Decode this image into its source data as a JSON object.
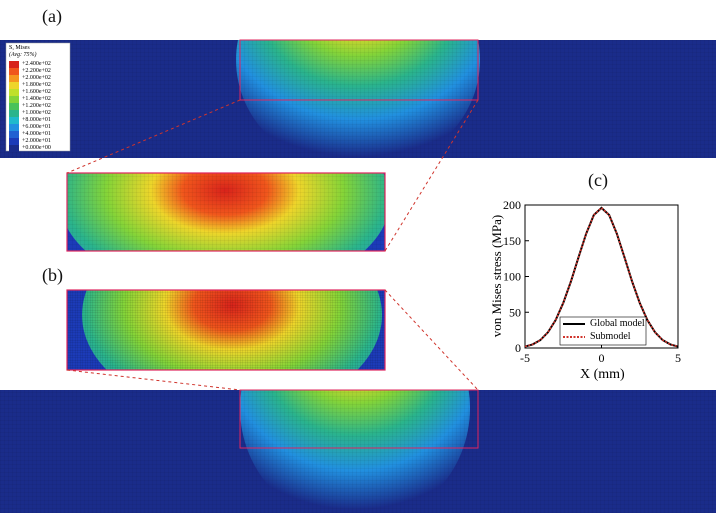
{
  "labels": {
    "a": "(a)",
    "b": "(b)",
    "c": "(c)"
  },
  "legend": {
    "title": "S, Mises",
    "subtitle": "(Avg: 75%)",
    "entries": [
      "+2.400e+02",
      "+2.200e+02",
      "+2.000e+02",
      "+1.800e+02",
      "+1.600e+02",
      "+1.400e+02",
      "+1.200e+02",
      "+1.000e+02",
      "+8.000e+01",
      "+6.000e+01",
      "+4.000e+01",
      "+2.000e+01",
      "+0.000e+00"
    ],
    "colors": [
      "#d8231b",
      "#f0561c",
      "#f5961f",
      "#eed52a",
      "#bfe02a",
      "#84d438",
      "#49c25a",
      "#2ab48c",
      "#1fb9cc",
      "#2190e0",
      "#2160d2",
      "#1c3bb8",
      "#1a2c8a"
    ]
  },
  "colors": {
    "background_mesh": "#1a2c8a",
    "highlight_box": "#e0245e",
    "dashed_connector": "#d0342c",
    "global_line": "#000000",
    "sub_line": "#d0342c"
  },
  "chart_data": {
    "type": "line",
    "xlabel": "X (mm)",
    "ylabel": "von Mises stress (MPa)",
    "xlim": [
      -5,
      5
    ],
    "ylim": [
      0,
      200
    ],
    "xticks": [
      -5,
      0,
      5
    ],
    "yticks": [
      0,
      50,
      100,
      150,
      200
    ],
    "legend_position": "bottom-right",
    "series": [
      {
        "name": "Global model",
        "style": "solid",
        "x": [
          -5,
          -4.5,
          -4,
          -3.5,
          -3,
          -2.5,
          -2,
          -1.5,
          -1,
          -0.5,
          0,
          0.5,
          1,
          1.5,
          2,
          2.5,
          3,
          3.5,
          4,
          4.5,
          5
        ],
        "y": [
          2,
          5,
          11,
          22,
          39,
          63,
          93,
          127,
          160,
          186,
          196,
          186,
          160,
          127,
          93,
          63,
          39,
          22,
          11,
          5,
          2
        ]
      },
      {
        "name": "Submodel",
        "style": "dotted",
        "x": [
          -5,
          -4.5,
          -4,
          -3.5,
          -3,
          -2.5,
          -2,
          -1.5,
          -1,
          -0.5,
          0,
          0.5,
          1,
          1.5,
          2,
          2.5,
          3,
          3.5,
          4,
          4.5,
          5
        ],
        "y": [
          2,
          5,
          11,
          22,
          39,
          63,
          93,
          127,
          160,
          186,
          196,
          186,
          160,
          127,
          93,
          63,
          39,
          22,
          11,
          5,
          2
        ]
      }
    ]
  }
}
